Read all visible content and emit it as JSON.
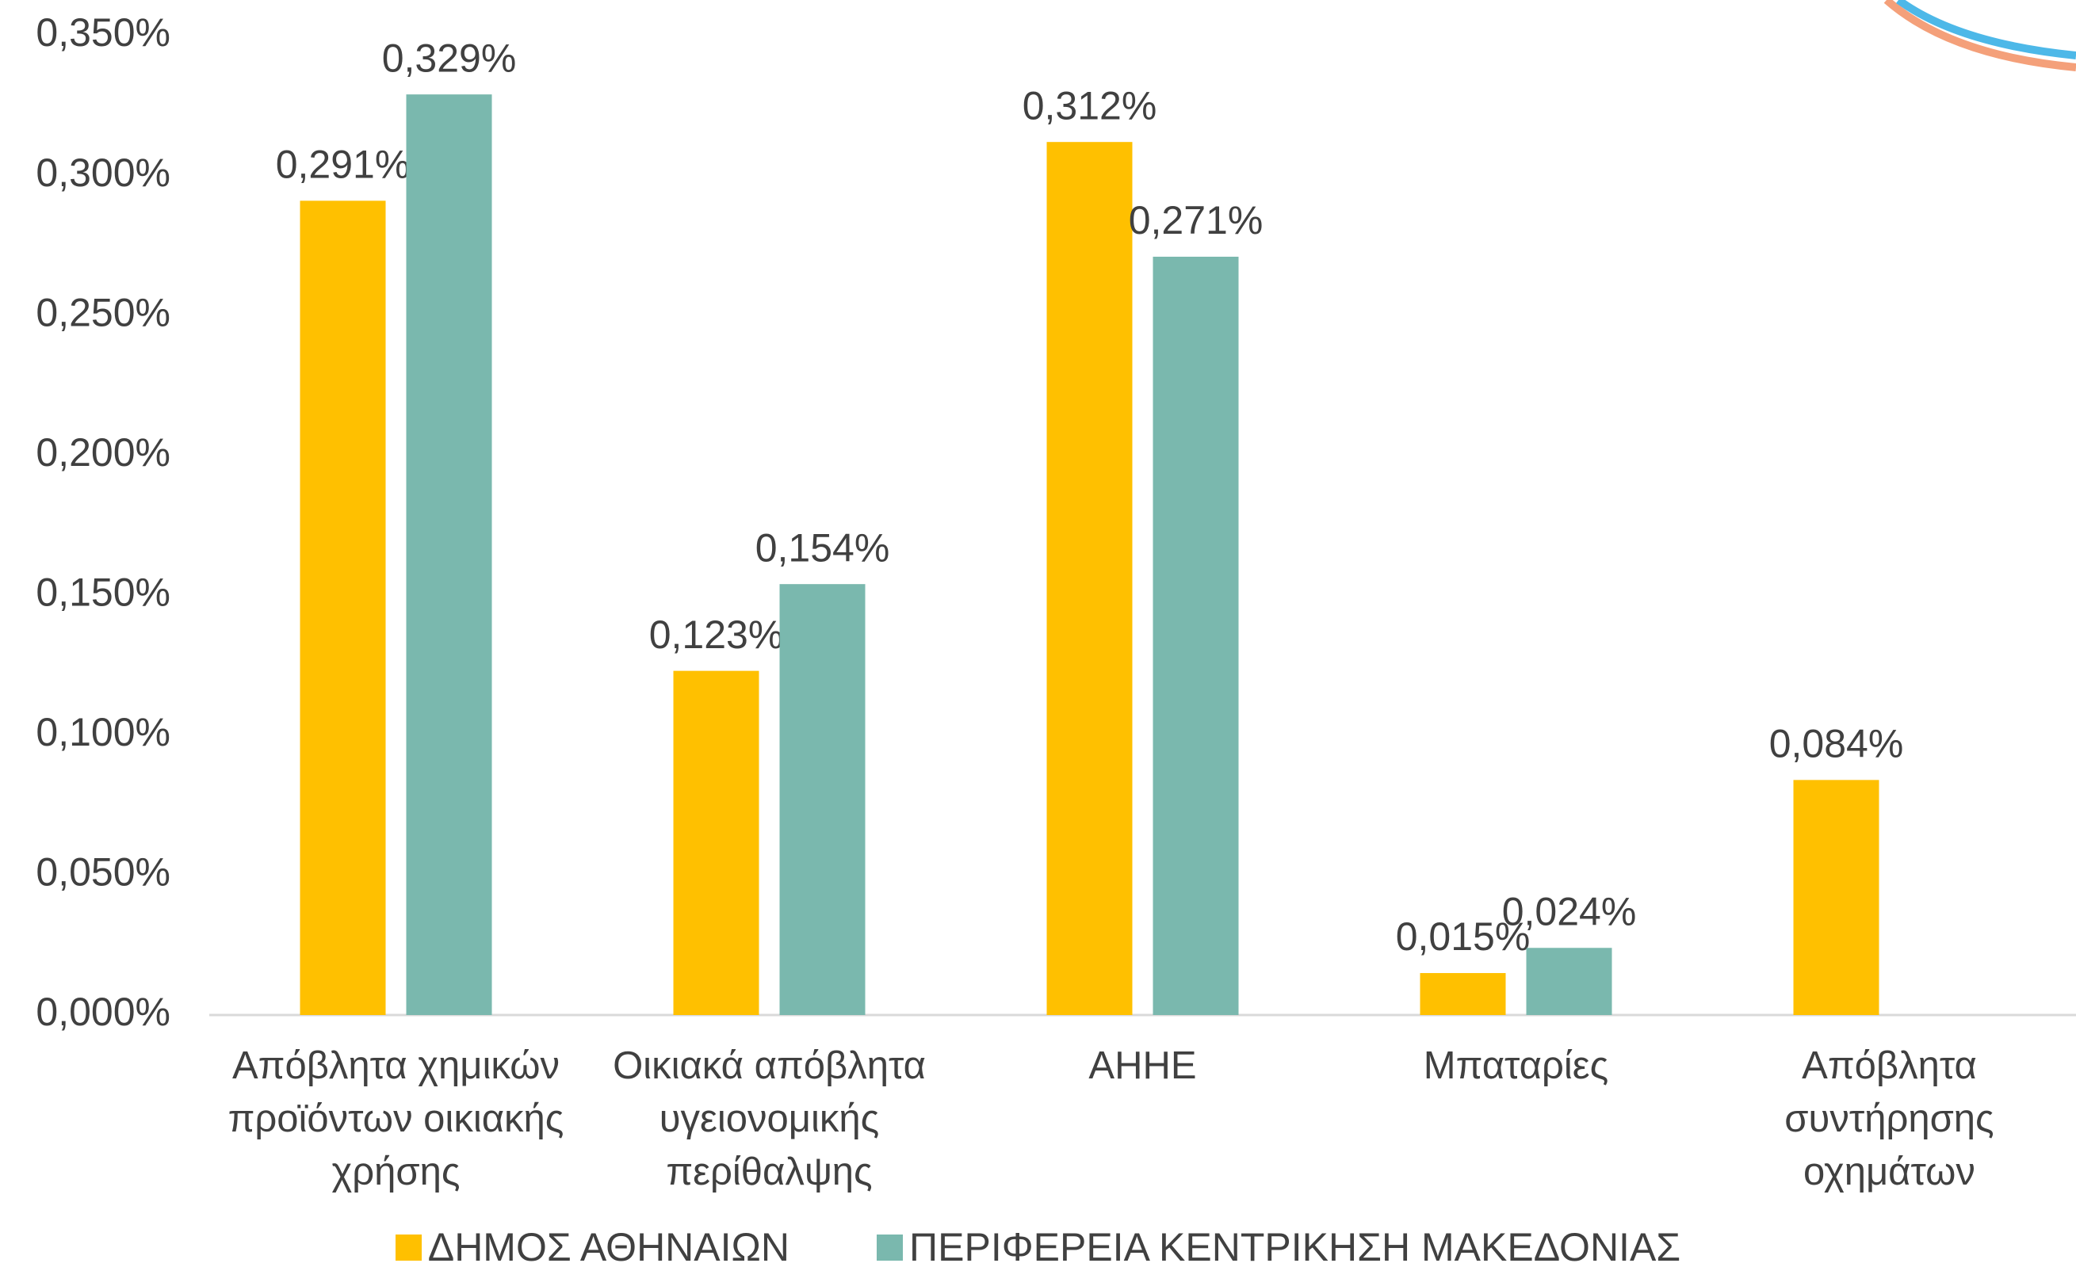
{
  "chart_data": {
    "type": "bar",
    "categories": [
      "Απόβλητα χημικών προϊόντων οικιακής χρήσης",
      "Οικιακά απόβλητα υγειονομικής περίθαλψης",
      "ΑΗΗΕ",
      "Μπαταρίες",
      "Απόβλητα συντήρησης οχημάτων"
    ],
    "series": [
      {
        "name": "ΔΗΜΟΣ ΑΘΗΝΑΙΩΝ",
        "color": "#FFC000",
        "values": [
          0.291,
          0.123,
          0.312,
          0.015,
          0.084
        ],
        "value_labels": [
          "0,291%",
          "0,123%",
          "0,312%",
          "0,015%",
          "0,084%"
        ]
      },
      {
        "name": "ΠΕΡΙΦΕΡΕΙΑ ΚΕΝΤΡΙΚΗΣΗ ΜΑΚΕΔΟΝΙΑΣ",
        "color": "#7AB8AE",
        "values": [
          0.329,
          0.154,
          0.271,
          0.024,
          null
        ],
        "value_labels": [
          "0,329%",
          "0,154%",
          "0,271%",
          "0,024%",
          null
        ]
      }
    ],
    "ylim": [
      0,
      0.35
    ],
    "yticks": [
      {
        "value": 0,
        "label": "0,000%"
      },
      {
        "value": 0.05,
        "label": "0,050%"
      },
      {
        "value": 0.1,
        "label": "0,100%"
      },
      {
        "value": 0.15,
        "label": "0,150%"
      },
      {
        "value": 0.2,
        "label": "0,200%"
      },
      {
        "value": 0.25,
        "label": "0,250%"
      },
      {
        "value": 0.3,
        "label": "0,300%"
      },
      {
        "value": 0.35,
        "label": "0,350%"
      }
    ],
    "grid": false,
    "legend": "bottom"
  }
}
